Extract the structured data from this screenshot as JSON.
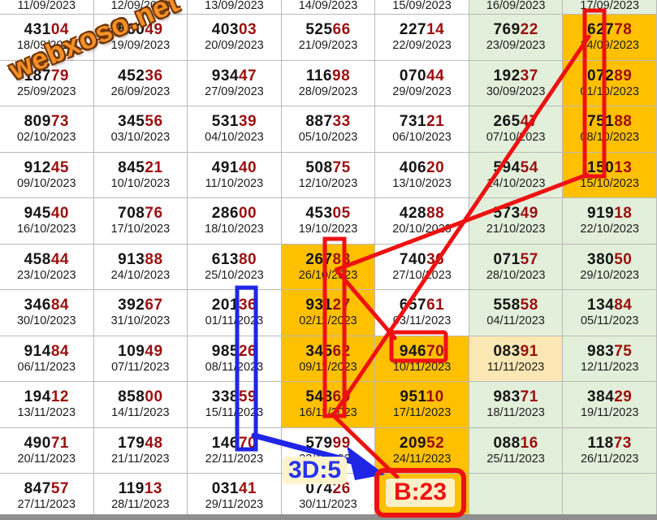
{
  "watermark_text": "webxoso.net",
  "annotations": {
    "arrow_label": "3D:5",
    "result_label": "B:23",
    "red_accent": "#ee1111",
    "blue_accent": "#2026e6"
  },
  "colors": {
    "cell_white": "#ffffff",
    "cell_green": "#e2efda",
    "cell_orange": "#ffc000",
    "cell_cream": "#fbe7b4",
    "digit_black": "#151515",
    "digit_red": "#9c0f0f"
  },
  "table": {
    "header_dates": [
      "11/09/2023",
      "12/09/2023",
      "13/09/2023",
      "14/09/2023",
      "15/09/2023",
      "16/09/2023",
      "17/09/2023"
    ],
    "header_bgs": [
      "white",
      "white",
      "white",
      "white",
      "white",
      "green",
      "green"
    ],
    "rows": [
      {
        "cells": [
          {
            "num": "43104",
            "date": "18/09/2023",
            "bg": "white"
          },
          {
            "num": "56049",
            "date": "19/09/2023",
            "bg": "white"
          },
          {
            "num": "40303",
            "date": "20/09/2023",
            "bg": "white"
          },
          {
            "num": "52566",
            "date": "21/09/2023",
            "bg": "white"
          },
          {
            "num": "22714",
            "date": "22/09/2023",
            "bg": "white"
          },
          {
            "num": "76922",
            "date": "23/09/2023",
            "bg": "green"
          },
          {
            "num": "62778",
            "date": "24/09/2023",
            "bg": "orange"
          }
        ]
      },
      {
        "cells": [
          {
            "num": "18779",
            "date": "25/09/2023",
            "bg": "white"
          },
          {
            "num": "45236",
            "date": "26/09/2023",
            "bg": "white"
          },
          {
            "num": "93447",
            "date": "27/09/2023",
            "bg": "white"
          },
          {
            "num": "11698",
            "date": "28/09/2023",
            "bg": "white"
          },
          {
            "num": "07044",
            "date": "29/09/2023",
            "bg": "white"
          },
          {
            "num": "19237",
            "date": "30/09/2023",
            "bg": "green"
          },
          {
            "num": "07289",
            "date": "01/10/2023",
            "bg": "orange"
          }
        ]
      },
      {
        "cells": [
          {
            "num": "80973",
            "date": "02/10/2023",
            "bg": "white"
          },
          {
            "num": "34556",
            "date": "03/10/2023",
            "bg": "white"
          },
          {
            "num": "53139",
            "date": "04/10/2023",
            "bg": "white"
          },
          {
            "num": "88733",
            "date": "05/10/2023",
            "bg": "white"
          },
          {
            "num": "73121",
            "date": "06/10/2023",
            "bg": "white"
          },
          {
            "num": "26547",
            "date": "07/10/2023",
            "bg": "green"
          },
          {
            "num": "75188",
            "date": "08/10/2023",
            "bg": "orange"
          }
        ]
      },
      {
        "cells": [
          {
            "num": "91245",
            "date": "09/10/2023",
            "bg": "white"
          },
          {
            "num": "84521",
            "date": "10/10/2023",
            "bg": "white"
          },
          {
            "num": "49140",
            "date": "11/10/2023",
            "bg": "white"
          },
          {
            "num": "50875",
            "date": "12/10/2023",
            "bg": "white"
          },
          {
            "num": "40620",
            "date": "13/10/2023",
            "bg": "white"
          },
          {
            "num": "59454",
            "date": "14/10/2023",
            "bg": "green"
          },
          {
            "num": "15013",
            "date": "15/10/2023",
            "bg": "orange"
          }
        ]
      },
      {
        "cells": [
          {
            "num": "94540",
            "date": "16/10/2023",
            "bg": "white"
          },
          {
            "num": "70876",
            "date": "17/10/2023",
            "bg": "white"
          },
          {
            "num": "28600",
            "date": "18/10/2023",
            "bg": "white"
          },
          {
            "num": "45305",
            "date": "19/10/2023",
            "bg": "white"
          },
          {
            "num": "42888",
            "date": "20/10/2023",
            "bg": "white"
          },
          {
            "num": "57349",
            "date": "21/10/2023",
            "bg": "green"
          },
          {
            "num": "91918",
            "date": "22/10/2023",
            "bg": "green"
          }
        ]
      },
      {
        "cells": [
          {
            "num": "45844",
            "date": "23/10/2023",
            "bg": "white"
          },
          {
            "num": "91388",
            "date": "24/10/2023",
            "bg": "white"
          },
          {
            "num": "61380",
            "date": "25/10/2023",
            "bg": "white"
          },
          {
            "num": "26788",
            "date": "26/10/2023",
            "bg": "orange"
          },
          {
            "num": "74036",
            "date": "27/10/2023",
            "bg": "white"
          },
          {
            "num": "07157",
            "date": "28/10/2023",
            "bg": "green"
          },
          {
            "num": "38050",
            "date": "29/10/2023",
            "bg": "green"
          }
        ]
      },
      {
        "cells": [
          {
            "num": "34684",
            "date": "30/10/2023",
            "bg": "white"
          },
          {
            "num": "39267",
            "date": "31/10/2023",
            "bg": "white"
          },
          {
            "num": "20136",
            "date": "01/11/2023",
            "bg": "white"
          },
          {
            "num": "93127",
            "date": "02/11/2023",
            "bg": "orange"
          },
          {
            "num": "65761",
            "date": "03/11/2023",
            "bg": "white"
          },
          {
            "num": "55858",
            "date": "04/11/2023",
            "bg": "green"
          },
          {
            "num": "13484",
            "date": "05/11/2023",
            "bg": "green"
          }
        ]
      },
      {
        "cells": [
          {
            "num": "91484",
            "date": "06/11/2023",
            "bg": "white"
          },
          {
            "num": "10949",
            "date": "07/11/2023",
            "bg": "white"
          },
          {
            "num": "98526",
            "date": "08/11/2023",
            "bg": "white"
          },
          {
            "num": "34562",
            "date": "09/11/2023",
            "bg": "orange"
          },
          {
            "num": "94670",
            "date": "10/11/2023",
            "bg": "orange"
          },
          {
            "num": "08391",
            "date": "11/11/2023",
            "bg": "cream"
          },
          {
            "num": "98375",
            "date": "12/11/2023",
            "bg": "green"
          }
        ]
      },
      {
        "cells": [
          {
            "num": "19412",
            "date": "13/11/2023",
            "bg": "white"
          },
          {
            "num": "85800",
            "date": "14/11/2023",
            "bg": "white"
          },
          {
            "num": "33859",
            "date": "15/11/2023",
            "bg": "white"
          },
          {
            "num": "54869",
            "date": "16/11/2023",
            "bg": "orange"
          },
          {
            "num": "95110",
            "date": "17/11/2023",
            "bg": "orange"
          },
          {
            "num": "98371",
            "date": "18/11/2023",
            "bg": "green"
          },
          {
            "num": "38429",
            "date": "19/11/2023",
            "bg": "green"
          }
        ]
      },
      {
        "cells": [
          {
            "num": "49071",
            "date": "20/11/2023",
            "bg": "white"
          },
          {
            "num": "17948",
            "date": "21/11/2023",
            "bg": "white"
          },
          {
            "num": "14670",
            "date": "22/11/2023",
            "bg": "white"
          },
          {
            "num": "57999",
            "date": "23/11/2023",
            "bg": "white"
          },
          {
            "num": "20952",
            "date": "24/11/2023",
            "bg": "orange"
          },
          {
            "num": "08816",
            "date": "25/11/2023",
            "bg": "green"
          },
          {
            "num": "11873",
            "date": "26/11/2023",
            "bg": "green"
          }
        ]
      },
      {
        "cells": [
          {
            "num": "84757",
            "date": "27/11/2023",
            "bg": "white"
          },
          {
            "num": "11913",
            "date": "28/11/2023",
            "bg": "white"
          },
          {
            "num": "03141",
            "date": "29/11/2023",
            "bg": "white"
          },
          {
            "num": "07426",
            "date": "30/11/2023",
            "bg": "white"
          },
          {
            "num": "",
            "date": "",
            "bg": "orange"
          },
          {
            "num": "",
            "date": "",
            "bg": "green"
          },
          {
            "num": "",
            "date": "",
            "bg": "green"
          }
        ]
      }
    ]
  }
}
